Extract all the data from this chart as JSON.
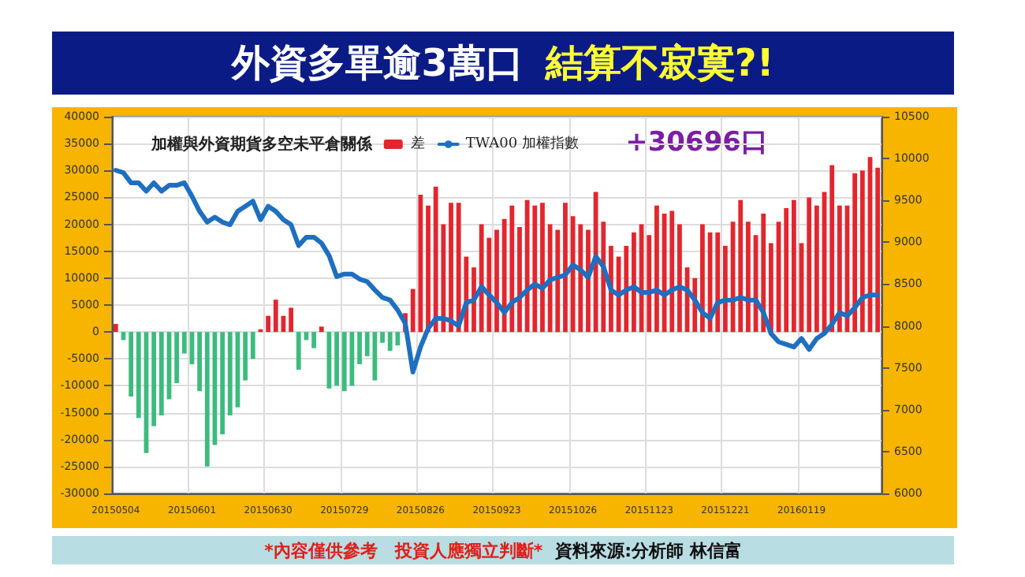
{
  "chart_data": {
    "type": "bar",
    "title": "外資多單逾3萬口 結算不寂寞?!",
    "subtitle": "加權與外資期貨多空未平倉關係",
    "annotations": [
      "+30696口",
      "*內容僅供參考　投資人應獨立判斷*",
      "資料來源:分析師 林信富"
    ],
    "categories": [
      "20150504",
      null,
      null,
      null,
      null,
      null,
      null,
      null,
      null,
      null,
      "20150601",
      null,
      null,
      null,
      null,
      null,
      null,
      null,
      null,
      null,
      "20150630",
      null,
      null,
      null,
      null,
      null,
      null,
      null,
      null,
      null,
      "20150729",
      null,
      null,
      null,
      null,
      null,
      null,
      null,
      null,
      null,
      "20150826",
      null,
      null,
      null,
      null,
      null,
      null,
      null,
      null,
      null,
      "20150923",
      null,
      null,
      null,
      null,
      null,
      null,
      null,
      null,
      null,
      "20151026",
      null,
      null,
      null,
      null,
      null,
      null,
      null,
      null,
      null,
      "20151123",
      null,
      null,
      null,
      null,
      null,
      null,
      null,
      null,
      null,
      "20151221",
      null,
      null,
      null,
      null,
      null,
      null,
      null,
      null,
      null,
      "20160119",
      null,
      null,
      null,
      null,
      null,
      null,
      null,
      null,
      null,
      null
    ],
    "series": [
      {
        "name": "差",
        "color": "#e3262e",
        "colors": [
          "#e3262e",
          "#3dbb7f",
          "#3dbb7f",
          "#3dbb7f",
          "#3dbb7f",
          "#3dbb7f",
          "#3dbb7f",
          "#3dbb7f",
          "#3dbb7f",
          "#3dbb7f",
          "#3dbb7f",
          "#3dbb7f",
          "#3dbb7f",
          "#3dbb7f",
          "#3dbb7f",
          "#3dbb7f",
          "#3dbb7f",
          "#3dbb7f",
          "#3dbb7f",
          "#e3262e",
          "#e3262e",
          "#e3262e",
          "#e3262e",
          "#e3262e",
          "#3dbb7f",
          "#3dbb7f",
          "#3dbb7f",
          "#e3262e",
          "#3dbb7f",
          "#3dbb7f",
          "#3dbb7f",
          "#3dbb7f",
          "#3dbb7f",
          "#3dbb7f",
          "#3dbb7f",
          "#3dbb7f",
          "#3dbb7f",
          "#3dbb7f",
          "#e3262e",
          "#e3262e",
          "#e3262e",
          "#e3262e",
          "#e3262e",
          "#e3262e",
          "#e3262e",
          "#e3262e",
          "#e3262e",
          "#e3262e",
          "#e3262e",
          "#e3262e",
          "#e3262e",
          "#e3262e",
          "#e3262e",
          "#e3262e",
          "#e3262e",
          "#e3262e",
          "#e3262e",
          "#e3262e",
          "#e3262e",
          "#e3262e",
          "#e3262e",
          "#e3262e",
          "#e3262e",
          "#e3262e",
          "#e3262e",
          "#e3262e",
          "#e3262e",
          "#e3262e",
          "#e3262e",
          "#e3262e",
          "#e3262e",
          "#e3262e",
          "#e3262e",
          "#e3262e",
          "#e3262e",
          "#e3262e",
          "#e3262e",
          "#e3262e",
          "#e3262e",
          "#e3262e",
          "#e3262e",
          "#e3262e",
          "#e3262e",
          "#e3262e",
          "#e3262e",
          "#e3262e",
          "#e3262e",
          "#e3262e",
          "#e3262e",
          "#e3262e",
          "#e3262e",
          "#e3262e",
          "#e3262e",
          "#e3262e",
          "#e3262e",
          "#e3262e",
          "#e3262e",
          "#e3262e",
          "#e3262e",
          "#e3262e",
          "#e3262e"
        ],
        "values": [
          1500,
          -1500,
          -12000,
          -16000,
          -22500,
          -17500,
          -15500,
          -12500,
          -9500,
          -4000,
          -6000,
          -11000,
          -25000,
          -21000,
          -19000,
          -15500,
          -14000,
          -9000,
          -5000,
          500,
          3000,
          6000,
          3000,
          4500,
          -7000,
          -1500,
          -3000,
          1000,
          -10500,
          -10000,
          -11000,
          -10000,
          -6000,
          -4500,
          -9000,
          -2000,
          -3500,
          -2500,
          3500,
          8000,
          25500,
          23500,
          27000,
          20000,
          24000,
          24000,
          14000,
          12000,
          20000,
          17500,
          19000,
          21000,
          23500,
          19500,
          24500,
          23500,
          24000,
          20000,
          19000,
          24000,
          21500,
          20000,
          19000,
          26000,
          20500,
          16000,
          14000,
          16000,
          18500,
          20000,
          18000,
          23500,
          22000,
          22500,
          20000,
          12000,
          10000,
          20000,
          18500,
          18500,
          16000,
          20500,
          24500,
          20500,
          18000,
          22000,
          16500,
          20500,
          23000,
          24500,
          16500,
          25000,
          23500,
          26000,
          31000,
          23500,
          23500,
          29500,
          30000,
          32500,
          30500
        ]
      },
      {
        "name": "TWA00 加權指數",
        "type": "line",
        "axis": "y2",
        "color": "#1f6fc0",
        "values": [
          9860,
          9830,
          9710,
          9710,
          9610,
          9710,
          9610,
          9680,
          9680,
          9710,
          9550,
          9370,
          9240,
          9300,
          9240,
          9210,
          9370,
          9430,
          9490,
          9270,
          9430,
          9370,
          9270,
          9210,
          8960,
          9060,
          9060,
          8990,
          8840,
          8590,
          8620,
          8620,
          8560,
          8530,
          8430,
          8340,
          8310,
          8190,
          8030,
          7450,
          7750,
          7970,
          8090,
          8090,
          8060,
          8000,
          8280,
          8310,
          8470,
          8370,
          8280,
          8160,
          8280,
          8340,
          8430,
          8500,
          8450,
          8550,
          8580,
          8610,
          8730,
          8670,
          8580,
          8830,
          8710,
          8430,
          8370,
          8430,
          8470,
          8400,
          8400,
          8430,
          8370,
          8430,
          8470,
          8430,
          8310,
          8160,
          8090,
          8280,
          8310,
          8310,
          8340,
          8310,
          8310,
          8160,
          7910,
          7810,
          7780,
          7750,
          7850,
          7720,
          7850,
          7910,
          8020,
          8160,
          8120,
          8220,
          8340,
          8370,
          8370
        ]
      }
    ],
    "ylim": [
      -30000,
      40000
    ],
    "yticks": [
      -30000,
      -25000,
      -20000,
      -15000,
      -10000,
      -5000,
      0,
      5000,
      10000,
      15000,
      20000,
      25000,
      30000,
      35000,
      40000
    ],
    "y2lim": [
      6000,
      10500
    ],
    "y2ticks": [
      6000,
      6500,
      7000,
      7500,
      8000,
      8500,
      9000,
      9500,
      10000,
      10500
    ],
    "grid": true,
    "legend": "top right",
    "marker": "none",
    "line_style": "solid"
  }
}
